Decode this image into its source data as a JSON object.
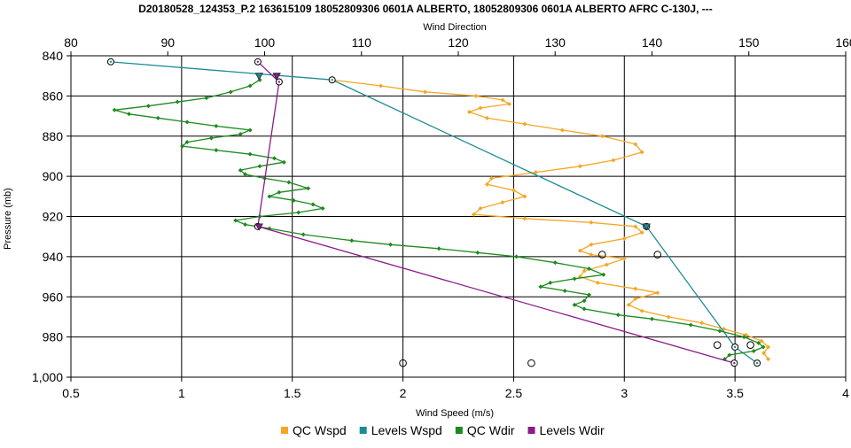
{
  "chart_data": {
    "type": "line",
    "title": "D20180528_124353_P.2 163615109 18052809306 0601A ALBERTO, 18052809306 0601A ALBERTO AFRC C-130J, ---",
    "xlabel": "Wind Speed (m/s)",
    "x2label": "Wind Direction",
    "ylabel": "Pressure (mb)",
    "xlim": [
      0.5,
      4.0
    ],
    "x2lim": [
      80,
      160
    ],
    "ylim": [
      1000,
      840
    ],
    "y_inverted": true,
    "grid": true,
    "legend_position": "bottom",
    "xticks": [
      "0.5",
      "1",
      "1.5",
      "2",
      "2.5",
      "3",
      "3.5",
      "4"
    ],
    "x2ticks": [
      "80",
      "90",
      "100",
      "110",
      "120",
      "130",
      "140",
      "150",
      "160"
    ],
    "yticks": [
      "840",
      "860",
      "880",
      "900",
      "920",
      "940",
      "960",
      "980",
      "1,000"
    ],
    "series": [
      {
        "name": "QC Wspd",
        "axis": "bottom",
        "color": "#f5a623",
        "marker": "diamond",
        "points": [
          [
            1.68,
            852
          ],
          [
            1.9,
            855
          ],
          [
            2.1,
            858
          ],
          [
            2.33,
            860
          ],
          [
            2.45,
            862
          ],
          [
            2.48,
            864
          ],
          [
            2.35,
            866
          ],
          [
            2.3,
            868
          ],
          [
            2.38,
            871
          ],
          [
            2.55,
            874
          ],
          [
            2.72,
            877
          ],
          [
            2.9,
            880
          ],
          [
            3.05,
            884
          ],
          [
            3.08,
            888
          ],
          [
            2.95,
            892
          ],
          [
            2.8,
            895
          ],
          [
            2.6,
            898
          ],
          [
            2.4,
            901
          ],
          [
            2.38,
            904
          ],
          [
            2.5,
            907
          ],
          [
            2.55,
            910
          ],
          [
            2.45,
            913
          ],
          [
            2.35,
            916
          ],
          [
            2.32,
            919
          ],
          [
            2.55,
            921
          ],
          [
            2.85,
            923
          ],
          [
            3.05,
            925
          ],
          [
            3.08,
            928
          ],
          [
            3.0,
            931
          ],
          [
            2.85,
            934
          ],
          [
            2.8,
            937
          ],
          [
            2.85,
            939
          ],
          [
            3.0,
            941
          ],
          [
            2.92,
            944
          ],
          [
            2.82,
            947
          ],
          [
            2.8,
            950
          ],
          [
            2.88,
            953
          ],
          [
            3.05,
            956
          ],
          [
            3.15,
            958
          ],
          [
            3.05,
            961
          ],
          [
            3.02,
            964
          ],
          [
            3.08,
            967
          ],
          [
            3.2,
            970
          ],
          [
            3.35,
            973
          ],
          [
            3.45,
            976
          ],
          [
            3.55,
            979
          ],
          [
            3.62,
            982
          ],
          [
            3.65,
            985
          ],
          [
            3.63,
            988
          ],
          [
            3.65,
            991
          ]
        ]
      },
      {
        "name": "Levels Wspd",
        "axis": "bottom",
        "color": "#1b8c96",
        "marker": "circle",
        "points": [
          [
            0.68,
            843
          ],
          [
            1.68,
            852
          ],
          [
            3.1,
            925
          ],
          [
            3.5,
            985
          ],
          [
            3.6,
            993
          ]
        ]
      },
      {
        "name": "QC Wdir",
        "axis": "top",
        "color": "#1e8a1e",
        "marker": "diamond",
        "points": [
          [
            99.5,
            852
          ],
          [
            98.5,
            855
          ],
          [
            96.5,
            858
          ],
          [
            94.0,
            861
          ],
          [
            91.0,
            863
          ],
          [
            88.0,
            865
          ],
          [
            84.5,
            867
          ],
          [
            86.0,
            869
          ],
          [
            89.0,
            871
          ],
          [
            92.0,
            873
          ],
          [
            95.0,
            875
          ],
          [
            98.5,
            877
          ],
          [
            97.5,
            879
          ],
          [
            94.5,
            881
          ],
          [
            92.0,
            883
          ],
          [
            91.5,
            885
          ],
          [
            95.0,
            887
          ],
          [
            98.5,
            889
          ],
          [
            101.0,
            891
          ],
          [
            102.0,
            893
          ],
          [
            99.5,
            895
          ],
          [
            97.5,
            897
          ],
          [
            98.0,
            899
          ],
          [
            100.0,
            901
          ],
          [
            102.5,
            903
          ],
          [
            104.5,
            906
          ],
          [
            101.5,
            908
          ],
          [
            100.5,
            910
          ],
          [
            103.0,
            912
          ],
          [
            105.0,
            914
          ],
          [
            106.0,
            916
          ],
          [
            103.5,
            918
          ],
          [
            99.5,
            920
          ],
          [
            97.0,
            922
          ],
          [
            98.0,
            924
          ],
          [
            100.5,
            926
          ],
          [
            104.0,
            929
          ],
          [
            109.0,
            932
          ],
          [
            113.0,
            934
          ],
          [
            118.0,
            936
          ],
          [
            122.0,
            938
          ],
          [
            126.0,
            940
          ],
          [
            130.0,
            943
          ],
          [
            133.5,
            946
          ],
          [
            135.0,
            949
          ],
          [
            132.0,
            951
          ],
          [
            129.5,
            953
          ],
          [
            128.5,
            955
          ],
          [
            131.0,
            957
          ],
          [
            133.5,
            959
          ],
          [
            133.0,
            962
          ],
          [
            132.0,
            964
          ],
          [
            133.0,
            966
          ],
          [
            136.5,
            969
          ],
          [
            140.0,
            971
          ],
          [
            144.0,
            974
          ],
          [
            147.0,
            977
          ],
          [
            149.5,
            980
          ],
          [
            151.0,
            983
          ],
          [
            151.5,
            985
          ],
          [
            150.5,
            987
          ],
          [
            148.0,
            989
          ],
          [
            147.5,
            991
          ]
        ]
      },
      {
        "name": "Levels Wdir",
        "axis": "top",
        "color": "#8b1a8b",
        "marker": "circle",
        "points": [
          [
            99.3,
            843
          ],
          [
            101.5,
            853
          ],
          [
            99.3,
            925
          ],
          [
            148.5,
            993
          ]
        ]
      }
    ],
    "markers": [
      {
        "label": "◆",
        "axis": "bottom",
        "x": 1.35,
        "y": 850,
        "shape": "triangle",
        "color": "#1b8c96"
      },
      {
        "label": "◆",
        "axis": "bottom",
        "x": 1.43,
        "y": 850,
        "shape": "triangle",
        "color": "#8b1a8b"
      },
      {
        "label": "◆",
        "axis": "bottom",
        "x": 3.1,
        "y": 925,
        "shape": "triangle",
        "color": "#1b8c96"
      },
      {
        "label": "◆",
        "axis": "bottom",
        "x": 1.35,
        "y": 925,
        "shape": "triangle",
        "color": "#8b1a8b"
      }
    ],
    "open_circles": [
      [
        2.9,
        939
      ],
      [
        3.15,
        939
      ],
      [
        3.42,
        984
      ],
      [
        3.57,
        984
      ],
      [
        2.0,
        993
      ],
      [
        2.58,
        993
      ]
    ]
  }
}
